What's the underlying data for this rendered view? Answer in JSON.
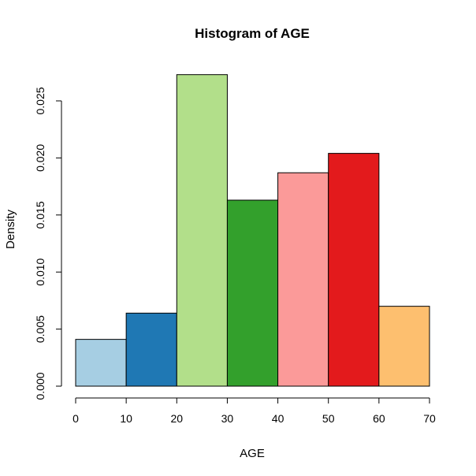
{
  "chart_data": {
    "type": "bar",
    "title": "Histogram of AGE",
    "xlabel": "AGE",
    "ylabel": "Density",
    "bins": [
      [
        0,
        10
      ],
      [
        10,
        20
      ],
      [
        20,
        30
      ],
      [
        30,
        40
      ],
      [
        40,
        50
      ],
      [
        50,
        60
      ],
      [
        60,
        70
      ]
    ],
    "values": [
      0.0041,
      0.0064,
      0.0273,
      0.0163,
      0.0187,
      0.0204,
      0.007
    ],
    "colors": [
      "#A6CEE3",
      "#1F78B4",
      "#B2DF8A",
      "#33A02C",
      "#FB9A99",
      "#E31A1C",
      "#FDBF6F"
    ],
    "xlim": [
      0,
      70
    ],
    "ylim": [
      0,
      0.025
    ],
    "xticks": [
      0,
      10,
      20,
      30,
      40,
      50,
      60,
      70
    ],
    "xtick_labels": [
      "0",
      "10",
      "20",
      "30",
      "40",
      "50",
      "60",
      "70"
    ],
    "yticks": [
      0,
      0.005,
      0.01,
      0.015,
      0.02,
      0.025
    ],
    "ytick_labels": [
      "0.000",
      "0.005",
      "0.010",
      "0.015",
      "0.020",
      "0.025"
    ],
    "grid": false
  }
}
